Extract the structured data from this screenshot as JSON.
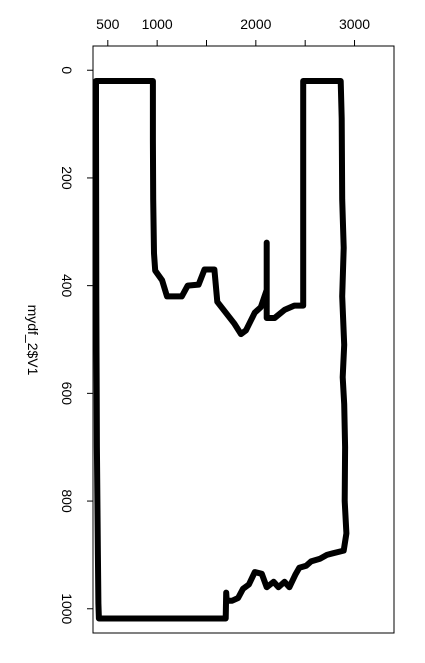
{
  "chart_data": {
    "type": "line",
    "title": "",
    "xlabel": "",
    "ylabel": "mydf_2$V1",
    "x_ticks": [
      500,
      1000,
      1500,
      2000,
      2500,
      3000
    ],
    "x_tick_labels": [
      "500",
      "1000",
      "",
      "2000",
      "",
      "3000"
    ],
    "y_ticks": [
      0,
      200,
      400,
      600,
      800,
      1000
    ],
    "y_tick_labels": [
      "0",
      "200",
      "400",
      "600",
      "800",
      "1000"
    ],
    "xlim": [
      350,
      3400
    ],
    "ylim": [
      1045,
      -45
    ],
    "x_axis_position": "top",
    "y_tick_label_rotation": "rotated 90 degrees",
    "line_color": "#000000",
    "grid": false,
    "series": [
      {
        "name": "",
        "points": [
          [
            380,
            20
          ],
          [
            957,
            20
          ],
          [
            957,
            130
          ],
          [
            960,
            240
          ],
          [
            968,
            340
          ],
          [
            980,
            372
          ],
          [
            1050,
            390
          ],
          [
            1100,
            420
          ],
          [
            1250,
            420
          ],
          [
            1310,
            400
          ],
          [
            1420,
            398
          ],
          [
            1480,
            370
          ],
          [
            1580,
            370
          ],
          [
            1610,
            430
          ],
          [
            1780,
            470
          ],
          [
            1850,
            490
          ],
          [
            1900,
            483
          ],
          [
            1990,
            450
          ],
          [
            2050,
            440
          ],
          [
            2110,
            408
          ],
          [
            2110,
            320
          ],
          [
            2110,
            460
          ],
          [
            2190,
            460
          ],
          [
            2290,
            445
          ],
          [
            2390,
            437
          ],
          [
            2480,
            437
          ],
          [
            2480,
            20
          ],
          [
            2860,
            20
          ],
          [
            2870,
            90
          ],
          [
            2875,
            240
          ],
          [
            2890,
            330
          ],
          [
            2875,
            420
          ],
          [
            2895,
            510
          ],
          [
            2880,
            570
          ],
          [
            2895,
            620
          ],
          [
            2905,
            700
          ],
          [
            2900,
            800
          ],
          [
            2918,
            860
          ],
          [
            2890,
            892
          ],
          [
            2780,
            897
          ],
          [
            2720,
            900
          ],
          [
            2650,
            907
          ],
          [
            2560,
            912
          ],
          [
            2510,
            920
          ],
          [
            2440,
            924
          ],
          [
            2400,
            937
          ],
          [
            2340,
            960
          ],
          [
            2290,
            950
          ],
          [
            2230,
            960
          ],
          [
            2180,
            950
          ],
          [
            2110,
            960
          ],
          [
            2060,
            935
          ],
          [
            1990,
            932
          ],
          [
            1930,
            955
          ],
          [
            1870,
            963
          ],
          [
            1820,
            980
          ],
          [
            1760,
            985
          ],
          [
            1705,
            985
          ],
          [
            1700,
            970
          ],
          [
            1695,
            1018
          ],
          [
            1690,
            1018
          ],
          [
            1500,
            1018
          ],
          [
            1000,
            1018
          ],
          [
            410,
            1018
          ],
          [
            405,
            990
          ],
          [
            400,
            900
          ],
          [
            395,
            800
          ],
          [
            390,
            700
          ],
          [
            387,
            600
          ],
          [
            385,
            520
          ],
          [
            383,
            420
          ],
          [
            382,
            300
          ],
          [
            381,
            200
          ],
          [
            380,
            100
          ],
          [
            380,
            20
          ]
        ]
      }
    ]
  }
}
